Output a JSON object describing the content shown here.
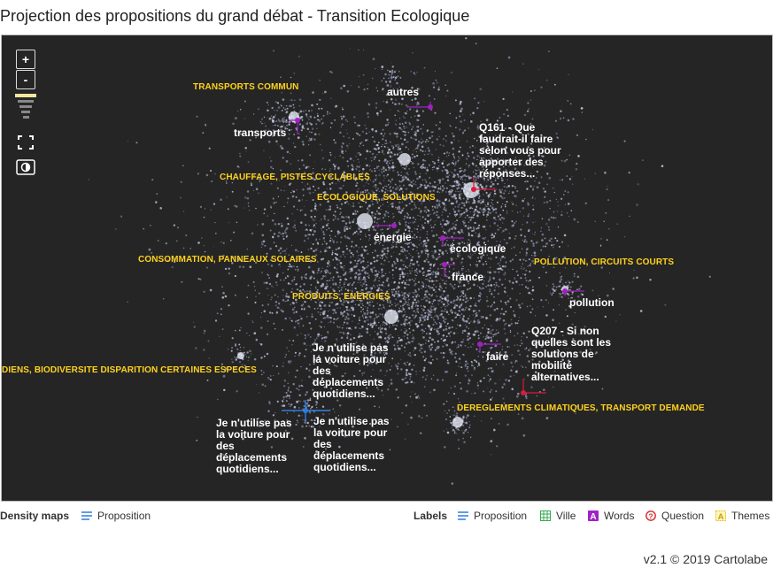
{
  "title": "Projection des propositions du grand débat - Transition Ecologique",
  "controls": {
    "zoom_in": "+",
    "zoom_out": "-"
  },
  "themes": [
    "TRANSPORTS COMMUN",
    "CHAUFFAGE, PISTES CYCLABLES",
    "ECOLOGIQUE, SOLUTIONS",
    "CONSOMMATION, PANNEAUX SOLAIRES",
    "POLLUTION, CIRCUITS COURTS",
    "PRODUITS, ENERGIES",
    "DIENS, BIODIVERSITE DISPARITION CERTAINES ESPECES",
    "DEREGLEMENTS CLIMATIQUES, TRANSPORT DEMANDE"
  ],
  "words": [
    "autres",
    "transports",
    "énergie",
    "écologique",
    "france",
    "pollution",
    "faire"
  ],
  "propositions": [
    "Q161 - Que faudrait-il faire selon vous pour apporter des réponses...",
    "Q207 - Si non quelles sont les solutions de mobilité alternatives...",
    "Je n'utilise pas la voiture pour des déplacements quotidiens...",
    "Je n'utilise pas la voiture pour des déplacements quotidiens...",
    "Je n'utilise pas la voiture pour des déplacements quotidiens..."
  ],
  "legend": {
    "density_heading": "Density maps",
    "density_item": "Proposition",
    "labels_heading": "Labels",
    "items": [
      {
        "label": "Proposition",
        "icon": "lines-icon",
        "color": "#2f7ce0"
      },
      {
        "label": "Ville",
        "icon": "grid-icon",
        "color": "#33a852"
      },
      {
        "label": "Words",
        "icon": "letter-a-icon",
        "color": "#a021c8"
      },
      {
        "label": "Question",
        "icon": "question-circle-icon",
        "color": "#d62a2a"
      },
      {
        "label": "Themes",
        "icon": "letter-a-box-icon",
        "color": "#e8c21a"
      }
    ]
  },
  "footer": "v2.1 © 2019 Cartolabe",
  "colors": {
    "map_bg": "#252525",
    "theme": "#ffd21c",
    "word_marker": "#a020c0",
    "question_marker": "#d81b3c",
    "selected_marker": "#2f7ce0"
  }
}
